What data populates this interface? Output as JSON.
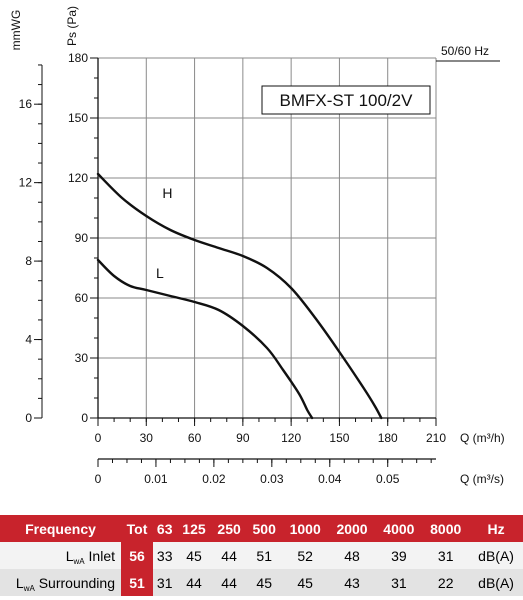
{
  "chart_data": {
    "type": "line",
    "model": "BMFX-ST 100/2V",
    "frequency_note": "50/60 Hz",
    "y_axis_pa": {
      "label": "Ps (Pa)",
      "min": 0,
      "max": 180,
      "ticks": [
        0,
        30,
        60,
        90,
        120,
        150,
        180
      ]
    },
    "y_axis_mmwg": {
      "label": "mmWG",
      "ticks": [
        0,
        4,
        8,
        12,
        16
      ]
    },
    "x_axis_m3h": {
      "label": "Q (m³/h)",
      "min": 0,
      "max": 210,
      "ticks": [
        0,
        30,
        60,
        90,
        120,
        150,
        180,
        210
      ]
    },
    "x_axis_m3s": {
      "label": "Q (m³/s)",
      "ticks": [
        "0",
        "0.01",
        "0.02",
        "0.03",
        "0.04",
        "0.05"
      ]
    },
    "series": [
      {
        "name": "H",
        "points": [
          [
            0,
            122
          ],
          [
            15,
            110
          ],
          [
            30,
            101
          ],
          [
            45,
            94
          ],
          [
            60,
            89
          ],
          [
            75,
            85
          ],
          [
            90,
            81
          ],
          [
            105,
            75
          ],
          [
            120,
            65
          ],
          [
            135,
            50
          ],
          [
            150,
            33
          ],
          [
            165,
            15
          ],
          [
            172,
            6
          ],
          [
            176,
            0
          ]
        ]
      },
      {
        "name": "L",
        "points": [
          [
            0,
            79
          ],
          [
            10,
            71
          ],
          [
            20,
            66
          ],
          [
            30,
            64
          ],
          [
            45,
            61
          ],
          [
            60,
            58
          ],
          [
            75,
            54
          ],
          [
            90,
            46
          ],
          [
            105,
            35
          ],
          [
            115,
            24
          ],
          [
            125,
            12
          ],
          [
            130,
            4
          ],
          [
            133,
            0
          ]
        ]
      }
    ]
  },
  "noise_table": {
    "headers": [
      "Frequency",
      "Tot",
      "63",
      "125",
      "250",
      "500",
      "1000",
      "2000",
      "4000",
      "8000",
      "Hz"
    ],
    "rows": [
      {
        "label_main": "L",
        "label_sub": "wA",
        "label_rest": "Inlet",
        "tot": "56",
        "values": [
          "33",
          "45",
          "44",
          "51",
          "52",
          "48",
          "39",
          "31"
        ],
        "unit": "dB(A)"
      },
      {
        "label_main": "L",
        "label_sub": "wA",
        "label_rest": "Surrounding",
        "tot": "51",
        "values": [
          "31",
          "44",
          "44",
          "45",
          "45",
          "43",
          "31",
          "22"
        ],
        "unit": "dB(A)"
      }
    ]
  },
  "colors": {
    "accent": "#c8232c",
    "curve": "#111111",
    "grid": "#8a8a8a"
  }
}
